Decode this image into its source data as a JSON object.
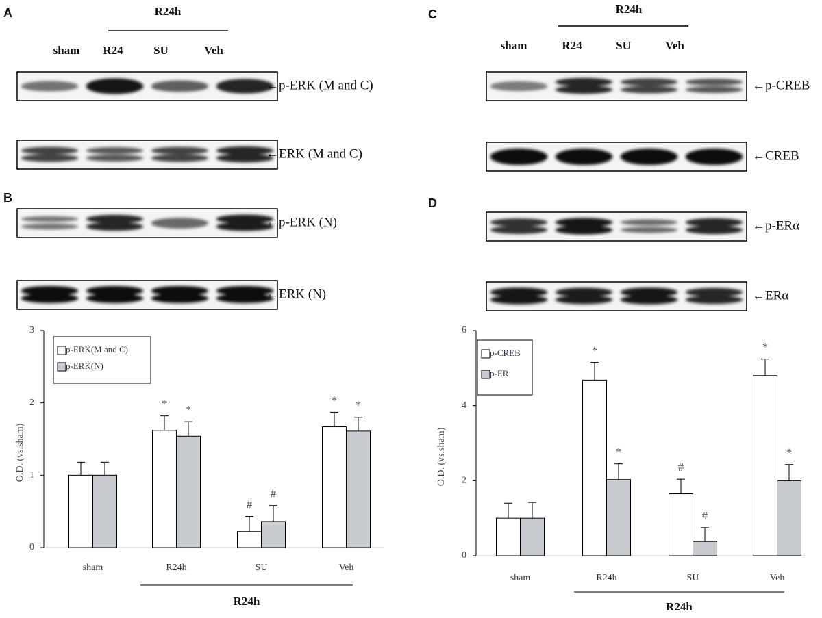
{
  "figure": [
    {
      "label": "A",
      "group": "R24h",
      "lanes": [
        "sham",
        "R24",
        "SU",
        "Veh"
      ],
      "blots": [
        "←p-ERK (M and C)",
        "←ERK (M and C)"
      ]
    },
    {
      "label": "B",
      "blots": [
        "←p-ERK (N)",
        "←ERK (N)"
      ]
    },
    {
      "label": "C",
      "group": "R24h",
      "lanes": [
        "sham",
        "R24",
        "SU",
        "Veh"
      ],
      "blots": [
        "←p-CREB",
        "←CREB"
      ]
    },
    {
      "label": "D",
      "blots": [
        "←p-ERα",
        "←ERα"
      ]
    }
  ],
  "chart_data": [
    {
      "type": "bar",
      "ylabel": "O.D. (vs.sham)",
      "categories": [
        "sham",
        "R24h",
        "SU",
        "Veh"
      ],
      "group": "R24h",
      "ylim": [
        0,
        3
      ],
      "yticks": [
        0,
        1,
        2,
        3
      ],
      "series": [
        {
          "name": "p-ERK(M and C)",
          "color": "#ffffff",
          "values": [
            1,
            1.62,
            0.22,
            1.67
          ],
          "errors": [
            0.18,
            0.2,
            0.21,
            0.2
          ],
          "annotations": [
            null,
            "*",
            "#",
            "*"
          ]
        },
        {
          "name": "p-ERK(N)",
          "color": "#c8ccd0",
          "values": [
            1,
            1.54,
            0.36,
            1.61
          ],
          "errors": [
            0.18,
            0.2,
            0.22,
            0.19
          ],
          "annotations": [
            null,
            "*",
            "#",
            "*"
          ]
        }
      ]
    },
    {
      "type": "bar",
      "ylabel": "O.D. (vs.sham)",
      "categories": [
        "sham",
        "R24h",
        "SU",
        "Veh"
      ],
      "group": "R24h",
      "ylim": [
        0,
        6
      ],
      "yticks": [
        0,
        2,
        4,
        6
      ],
      "series": [
        {
          "name": "p-CREB",
          "color": "#ffffff",
          "values": [
            1,
            4.68,
            1.65,
            4.8
          ],
          "errors": [
            0.4,
            0.47,
            0.39,
            0.44
          ],
          "annotations": [
            null,
            "*",
            "#",
            "*"
          ]
        },
        {
          "name": "p-ER",
          "color": "#c8ccd0",
          "values": [
            1,
            2.03,
            0.38,
            2.0
          ],
          "errors": [
            0.42,
            0.42,
            0.37,
            0.43
          ],
          "annotations": [
            null,
            "*",
            "#",
            "*"
          ]
        }
      ]
    }
  ]
}
